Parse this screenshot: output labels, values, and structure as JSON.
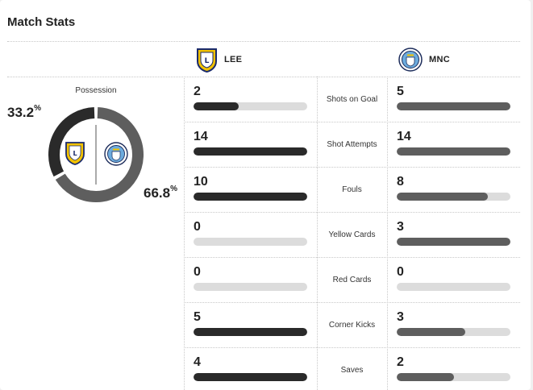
{
  "title": "Match Stats",
  "home": {
    "abbr": "LEE",
    "logo": "leeds-crest-icon"
  },
  "away": {
    "abbr": "MNC",
    "logo": "man-city-crest-icon"
  },
  "possession": {
    "label": "Possession",
    "home_value": "33.2",
    "away_value": "66.8",
    "unit": "%",
    "home_color": "#2a2a2a",
    "away_color": "#5e5e5e"
  },
  "stats": [
    {
      "label": "Shots on Goal",
      "home": "2",
      "away": "5",
      "home_fill": 0.4,
      "away_fill": 1.0
    },
    {
      "label": "Shot Attempts",
      "home": "14",
      "away": "14",
      "home_fill": 1.0,
      "away_fill": 1.0
    },
    {
      "label": "Fouls",
      "home": "10",
      "away": "8",
      "home_fill": 1.0,
      "away_fill": 0.8
    },
    {
      "label": "Yellow Cards",
      "home": "0",
      "away": "3",
      "home_fill": 0,
      "away_fill": 1.0
    },
    {
      "label": "Red Cards",
      "home": "0",
      "away": "0",
      "home_fill": 0,
      "away_fill": 0
    },
    {
      "label": "Corner Kicks",
      "home": "5",
      "away": "3",
      "home_fill": 1.0,
      "away_fill": 0.6
    },
    {
      "label": "Saves",
      "home": "4",
      "away": "2",
      "home_fill": 1.0,
      "away_fill": 0.5
    }
  ]
}
